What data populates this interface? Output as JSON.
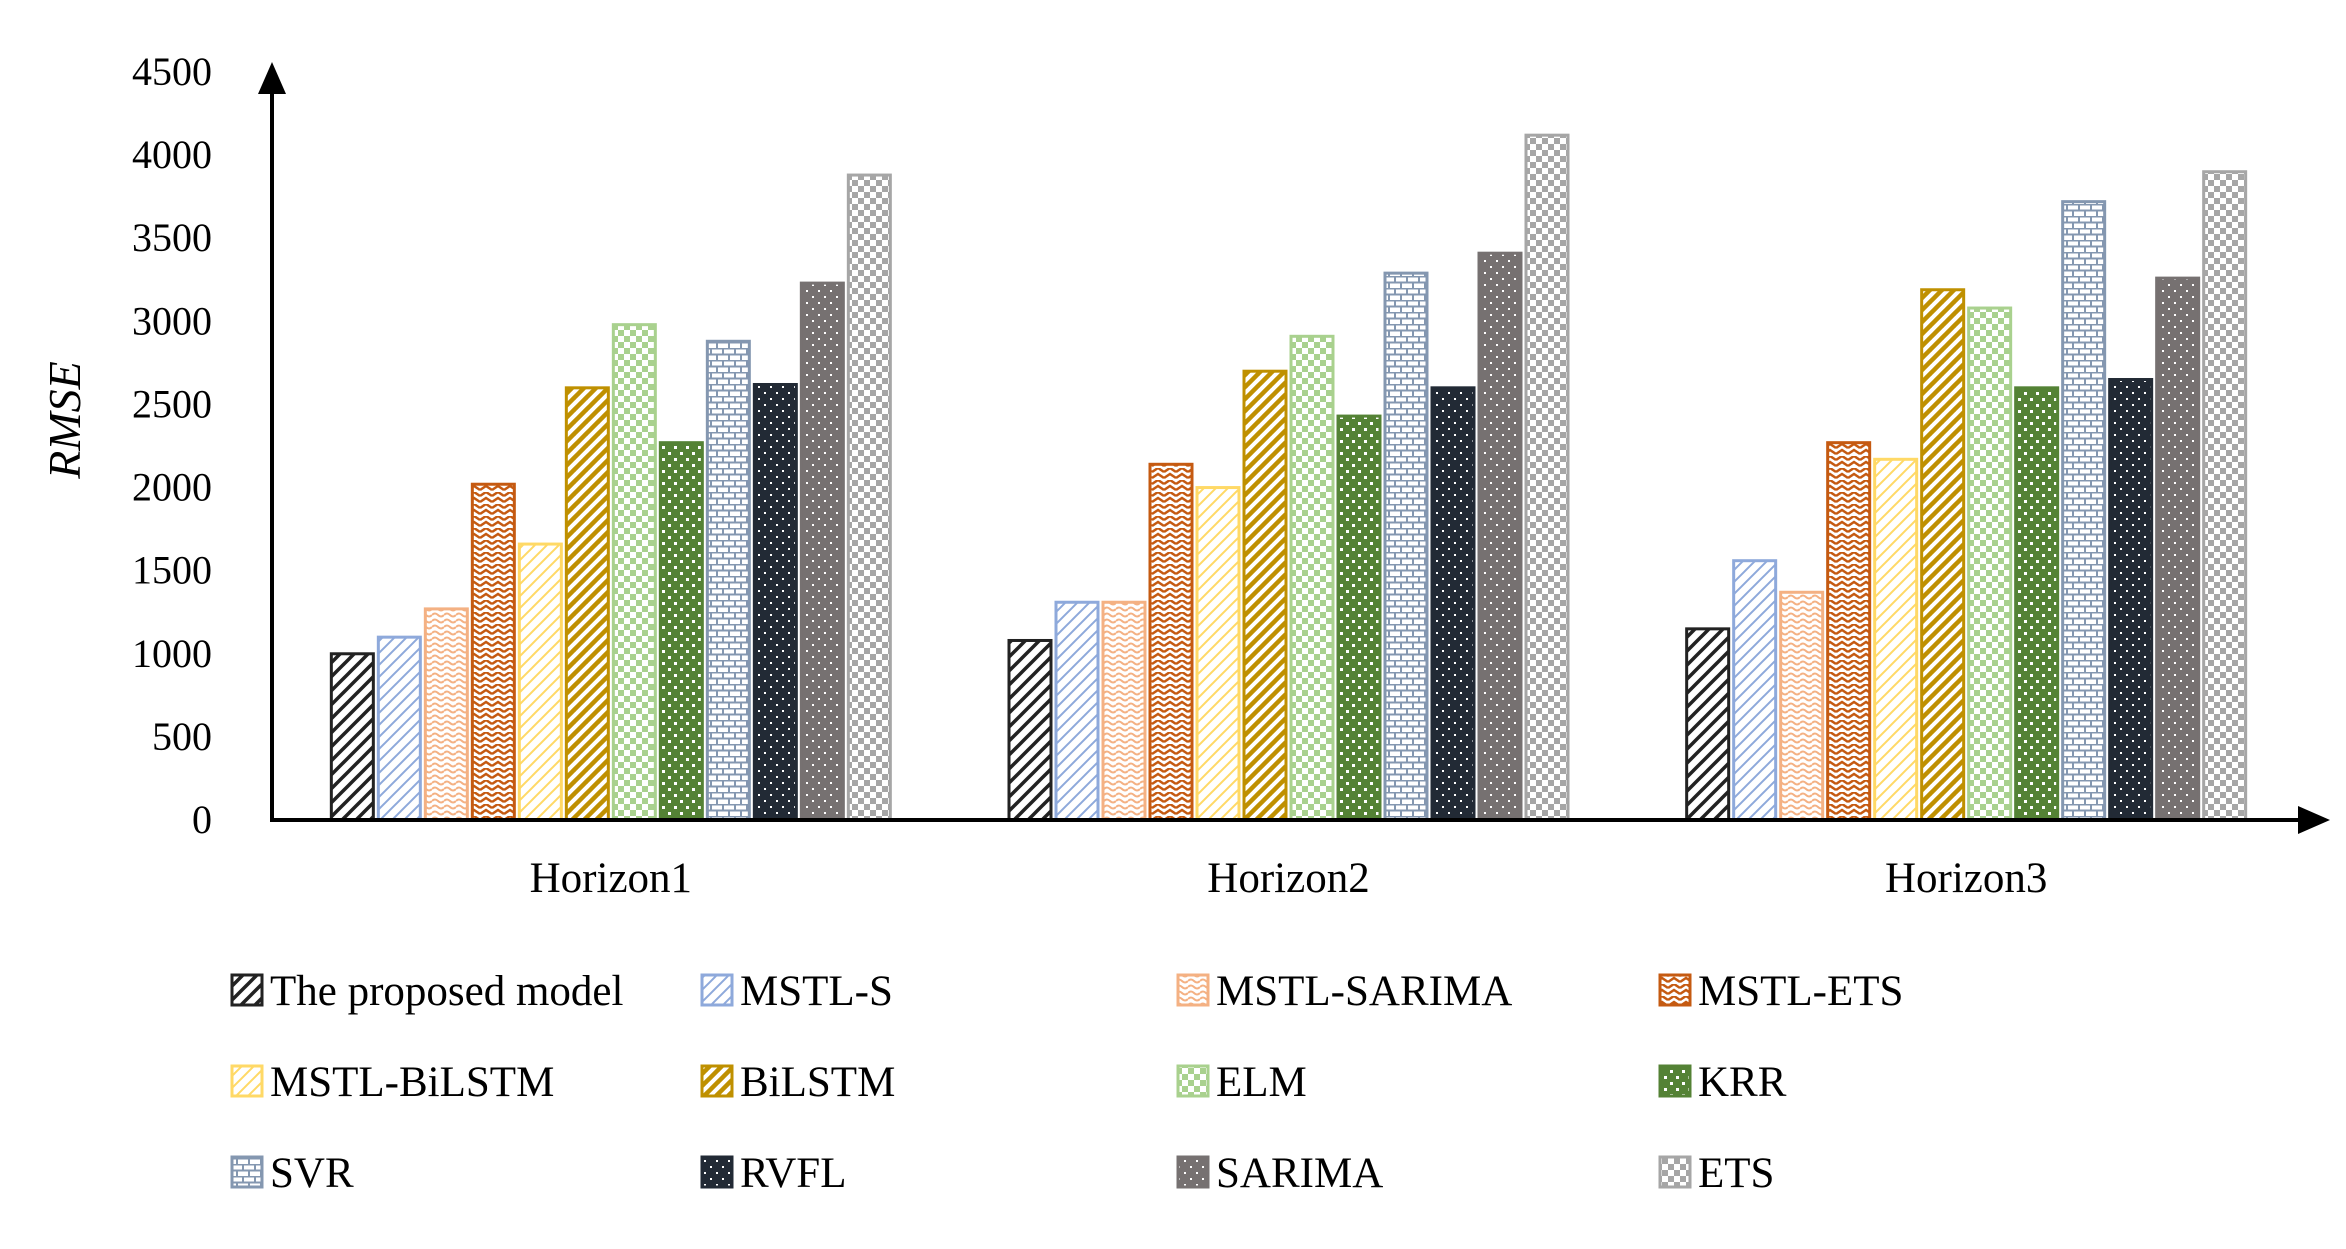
{
  "chart_data": {
    "type": "bar",
    "title": "",
    "xlabel": "",
    "ylabel": "RMSE",
    "ylim": [
      0,
      4500
    ],
    "yticks": [
      0,
      500,
      1000,
      1500,
      2000,
      2500,
      3000,
      3500,
      4000,
      4500
    ],
    "ytick_labels": [
      "0",
      "500",
      "1000",
      "1500",
      "2000",
      "2500",
      "3000",
      "3500",
      "4000",
      "4500"
    ],
    "grid": false,
    "legend_position": "bottom",
    "categories": [
      "Horizon1",
      "Horizon2",
      "Horizon3"
    ],
    "series": [
      {
        "name": "The proposed model",
        "color": "#222222",
        "pattern": "diag-wide",
        "values": [
          1000,
          1080,
          1150
        ]
      },
      {
        "name": "MSTL-S",
        "color": "#8EA9DB",
        "pattern": "diag-light",
        "values": [
          1100,
          1310,
          1560
        ]
      },
      {
        "name": "MSTL-SARIMA",
        "color": "#F4B183",
        "pattern": "wave",
        "values": [
          1270,
          1310,
          1370
        ]
      },
      {
        "name": "MSTL-ETS",
        "color": "#C55A11",
        "pattern": "zigzag",
        "values": [
          2020,
          2140,
          2270
        ]
      },
      {
        "name": "MSTL-BiLSTM",
        "color": "#FFD966",
        "pattern": "diag-light",
        "values": [
          1660,
          2000,
          2170
        ]
      },
      {
        "name": "BiLSTM",
        "color": "#BF9000",
        "pattern": "diag-dark",
        "values": [
          2600,
          2700,
          3190
        ]
      },
      {
        "name": "ELM",
        "color": "#A9D18E",
        "pattern": "checker",
        "values": [
          2980,
          2910,
          3080
        ]
      },
      {
        "name": "KRR",
        "color": "#548235",
        "pattern": "dots",
        "values": [
          2270,
          2430,
          2600
        ]
      },
      {
        "name": "SVR",
        "color": "#8497B0",
        "pattern": "brick",
        "values": [
          2880,
          3290,
          3720
        ]
      },
      {
        "name": "RVFL",
        "color": "#222A35",
        "pattern": "dots-dark",
        "values": [
          2620,
          2600,
          2650
        ]
      },
      {
        "name": "SARIMA",
        "color": "#767171",
        "pattern": "dots-dark",
        "values": [
          3230,
          3410,
          3260
        ]
      },
      {
        "name": "ETS",
        "color": "#A6A6A6",
        "pattern": "checker",
        "values": [
          3880,
          4120,
          3900
        ]
      }
    ]
  }
}
